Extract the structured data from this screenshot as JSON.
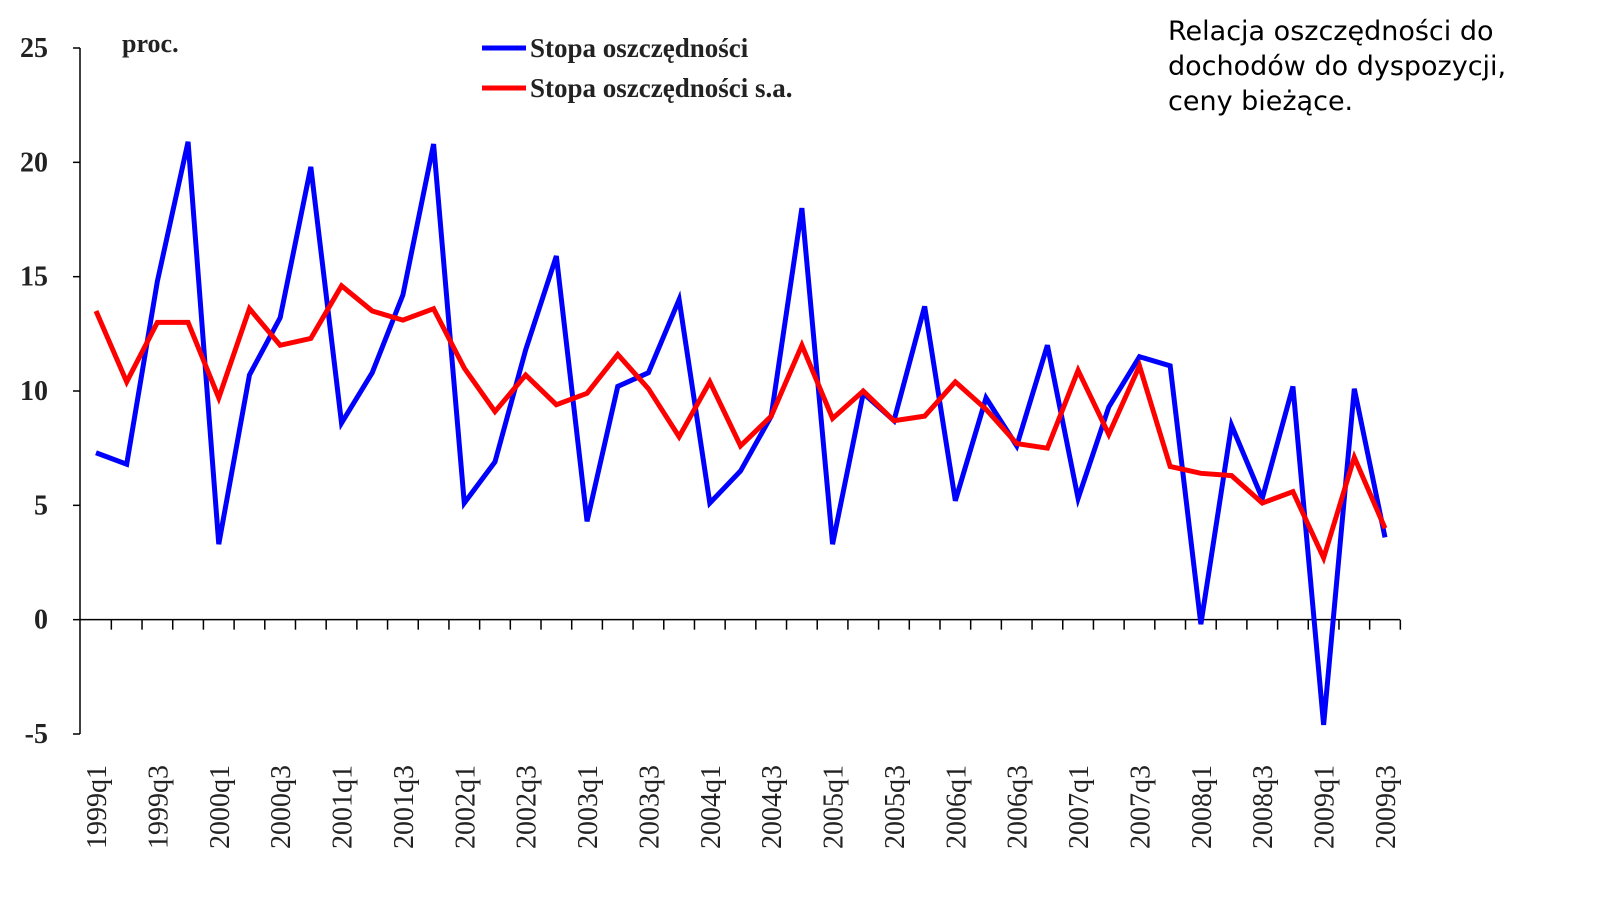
{
  "chart_data": {
    "type": "line",
    "y_label": "proc.",
    "annotation": [
      "Relacja oszczędności do",
      "dochodów do dyspozycji,",
      "ceny bieżące."
    ],
    "categories": [
      "1999q1",
      null,
      "1999q3",
      null,
      "2000q1",
      null,
      "2000q3",
      null,
      "2001q1",
      null,
      "2001q3",
      null,
      "2002q1",
      null,
      "2002q3",
      null,
      "2003q1",
      null,
      "2003q3",
      null,
      "2004q1",
      null,
      "2004q3",
      null,
      "2005q1",
      null,
      "2005q3",
      null,
      "2006q1",
      null,
      "2006q3",
      null,
      "2007q1",
      null,
      "2007q3",
      null,
      "2008q1",
      null,
      "2008q3",
      null,
      "2009q1",
      null,
      "2009q3"
    ],
    "series": [
      {
        "name": "Stopa oszczędności",
        "color": "#0000ff",
        "values": [
          7.3,
          6.8,
          14.8,
          20.9,
          3.3,
          10.7,
          13.2,
          19.8,
          8.6,
          10.8,
          14.2,
          20.8,
          5.1,
          6.9,
          11.8,
          15.9,
          4.3,
          10.2,
          10.8,
          14.0,
          5.1,
          6.5,
          8.9,
          18.0,
          3.3,
          9.9,
          8.7,
          13.7,
          5.2,
          9.7,
          7.6,
          12.0,
          5.3,
          9.3,
          11.5,
          11.1,
          -0.2,
          8.5,
          5.3,
          10.2,
          -4.6,
          10.1,
          3.6
        ]
      },
      {
        "name": "Stopa oszczędności s.a.",
        "color": "#ff0000",
        "values": [
          13.5,
          10.4,
          13.0,
          13.0,
          9.7,
          13.6,
          12.0,
          12.3,
          14.6,
          13.5,
          13.1,
          13.6,
          11.0,
          9.1,
          10.7,
          9.4,
          9.9,
          11.6,
          10.1,
          8.0,
          10.4,
          7.6,
          8.9,
          12.0,
          8.8,
          10.0,
          8.7,
          8.9,
          10.4,
          9.2,
          7.7,
          7.5,
          10.9,
          8.1,
          11.1,
          6.7,
          6.4,
          6.3,
          5.1,
          5.6,
          2.7,
          7.1,
          4.0
        ]
      }
    ],
    "ylim": [
      -5,
      25
    ],
    "yticks": [
      -5,
      0,
      5,
      10,
      15,
      20,
      25
    ],
    "grid": false
  }
}
